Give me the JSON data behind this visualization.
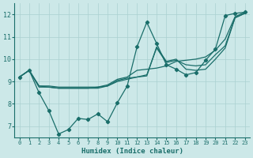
{
  "xlabel": "Humidex (Indice chaleur)",
  "xlim": [
    -0.5,
    23.5
  ],
  "ylim": [
    6.5,
    12.5
  ],
  "yticks": [
    7,
    8,
    9,
    10,
    11,
    12
  ],
  "xticks": [
    0,
    1,
    2,
    3,
    4,
    5,
    6,
    7,
    8,
    9,
    10,
    11,
    12,
    13,
    14,
    15,
    16,
    17,
    18,
    19,
    20,
    21,
    22,
    23
  ],
  "bg_color": "#cce8e8",
  "grid_color": "#aad0d0",
  "line_color": "#1a6e6a",
  "jagged_series": [
    9.2,
    9.5,
    8.5,
    7.7,
    6.65,
    6.85,
    7.35,
    7.3,
    7.55,
    7.2,
    8.05,
    8.8,
    10.55,
    11.65,
    10.7,
    9.75,
    9.55,
    9.3,
    9.4,
    9.95,
    10.45,
    11.95,
    12.05,
    12.1
  ],
  "smooth1": [
    9.2,
    9.5,
    8.8,
    8.8,
    8.75,
    8.75,
    8.75,
    8.75,
    8.75,
    8.85,
    9.1,
    9.2,
    9.5,
    9.55,
    9.6,
    9.7,
    9.9,
    9.95,
    10.0,
    10.1,
    10.4,
    10.9,
    11.9,
    12.1
  ],
  "smooth2": [
    9.2,
    9.5,
    8.8,
    8.75,
    8.7,
    8.7,
    8.7,
    8.7,
    8.75,
    8.8,
    9.0,
    9.1,
    9.2,
    9.3,
    10.5,
    9.85,
    9.95,
    9.75,
    9.7,
    9.75,
    10.2,
    10.6,
    11.85,
    12.05
  ],
  "smooth3": [
    9.2,
    9.5,
    8.75,
    8.75,
    8.7,
    8.7,
    8.7,
    8.7,
    8.7,
    8.8,
    9.05,
    9.15,
    9.2,
    9.25,
    10.55,
    9.9,
    10.0,
    9.55,
    9.5,
    9.55,
    10.0,
    10.5,
    11.85,
    12.05
  ]
}
